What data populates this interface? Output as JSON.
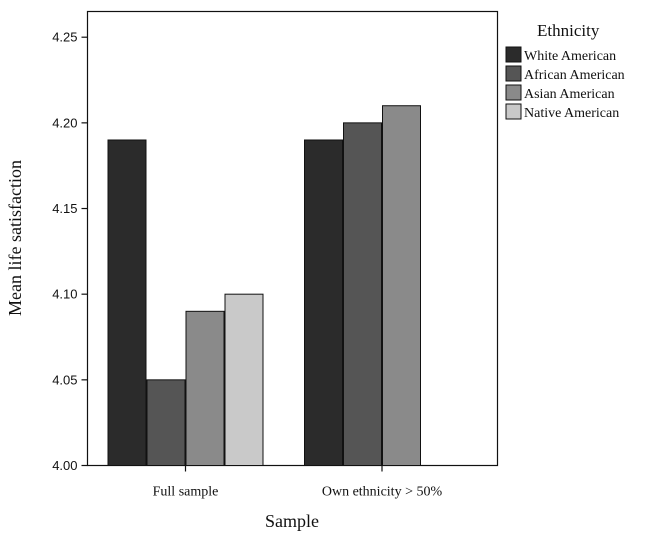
{
  "chart_data": {
    "type": "bar",
    "xlabel": "Sample",
    "ylabel": "Mean life satisfaction",
    "categories": [
      "Full sample",
      "Own ethnicity > 50%"
    ],
    "ylim": [
      4.0,
      4.265
    ],
    "yticks": [
      "4.00",
      "4.05",
      "4.10",
      "4.15",
      "4.20",
      "4.25"
    ],
    "yticks_values": [
      4.0,
      4.05,
      4.1,
      4.15,
      4.2,
      4.25
    ],
    "grid": false,
    "legend": {
      "title": "Ethnicity",
      "placement": "right"
    },
    "series": [
      {
        "name": "White American",
        "color": "#2b2b2b",
        "values": [
          4.19,
          4.19
        ]
      },
      {
        "name": "African American",
        "color": "#555555",
        "values": [
          4.05,
          4.2
        ]
      },
      {
        "name": "Asian American",
        "color": "#8a8a8a",
        "values": [
          4.09,
          4.21
        ]
      },
      {
        "name": "Native American",
        "color": "#c9c9c9",
        "values": [
          4.1,
          null
        ]
      }
    ]
  }
}
